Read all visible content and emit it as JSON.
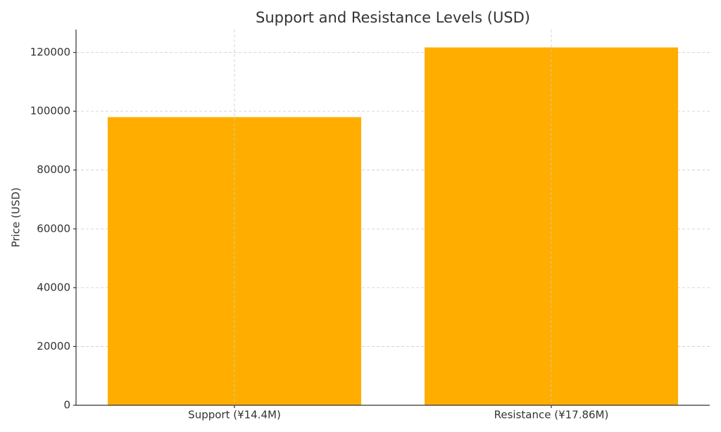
{
  "chart_data": {
    "type": "bar",
    "title": "Support and Resistance Levels (USD)",
    "y_label": "Price (USD)",
    "categories": [
      "Support (¥14.4M)",
      "Resistance (¥17.86M)"
    ],
    "values": [
      98000,
      121700
    ],
    "color": "#ffae00",
    "ylim": [
      0,
      127785
    ],
    "yticks": [
      0,
      20000,
      40000,
      60000,
      80000,
      100000,
      120000
    ],
    "grid": true
  }
}
